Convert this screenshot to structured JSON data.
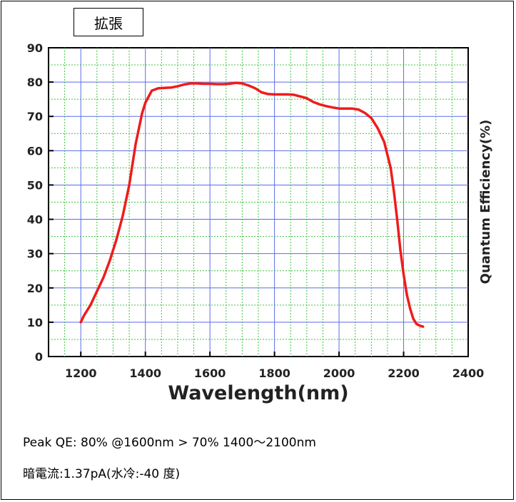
{
  "tab": {
    "label": "拡張"
  },
  "chart_data": {
    "type": "line",
    "title": "",
    "xlabel": "Wavelength(nm)",
    "ylabel": "Quantum Efficiency(%)",
    "xlim": [
      1100,
      2400
    ],
    "ylim": [
      0,
      90
    ],
    "x_ticks": [
      1200,
      1400,
      1600,
      1800,
      2000,
      2200,
      2400
    ],
    "y_ticks": [
      0,
      10,
      20,
      30,
      40,
      50,
      60,
      70,
      80,
      90
    ],
    "grid": true,
    "series": [
      {
        "color": "#ee1c1c",
        "x": [
          1200,
          1210,
          1230,
          1250,
          1270,
          1290,
          1310,
          1330,
          1350,
          1370,
          1390,
          1400,
          1420,
          1440,
          1460,
          1480,
          1500,
          1520,
          1540,
          1560,
          1580,
          1600,
          1620,
          1640,
          1660,
          1680,
          1700,
          1720,
          1740,
          1760,
          1780,
          1800,
          1820,
          1840,
          1860,
          1880,
          1900,
          1920,
          1940,
          1960,
          1980,
          2000,
          2020,
          2040,
          2060,
          2080,
          2100,
          2120,
          2140,
          2160,
          2170,
          2180,
          2190,
          2200,
          2210,
          2220,
          2230,
          2240,
          2250,
          2260
        ],
        "y": [
          10,
          12,
          15,
          19,
          23,
          28,
          34,
          41,
          50,
          62,
          71,
          74,
          77.5,
          78.2,
          78.3,
          78.4,
          78.8,
          79.3,
          79.6,
          79.6,
          79.5,
          79.5,
          79.4,
          79.4,
          79.5,
          79.8,
          79.6,
          79.0,
          78.2,
          77.0,
          76.5,
          76.4,
          76.4,
          76.4,
          76.3,
          75.8,
          75.3,
          74.2,
          73.5,
          73.0,
          72.6,
          72.3,
          72.3,
          72.3,
          72.0,
          71.0,
          69.5,
          66.5,
          62.5,
          55,
          48,
          40,
          31,
          24,
          18,
          14,
          11,
          9.5,
          9,
          8.7
        ]
      }
    ]
  },
  "info": {
    "line1": "Peak QE: 80% @1600nm  > 70% 1400〜2100nm",
    "line2": "暗電流:1.37pA(水冷:-40 度)"
  }
}
